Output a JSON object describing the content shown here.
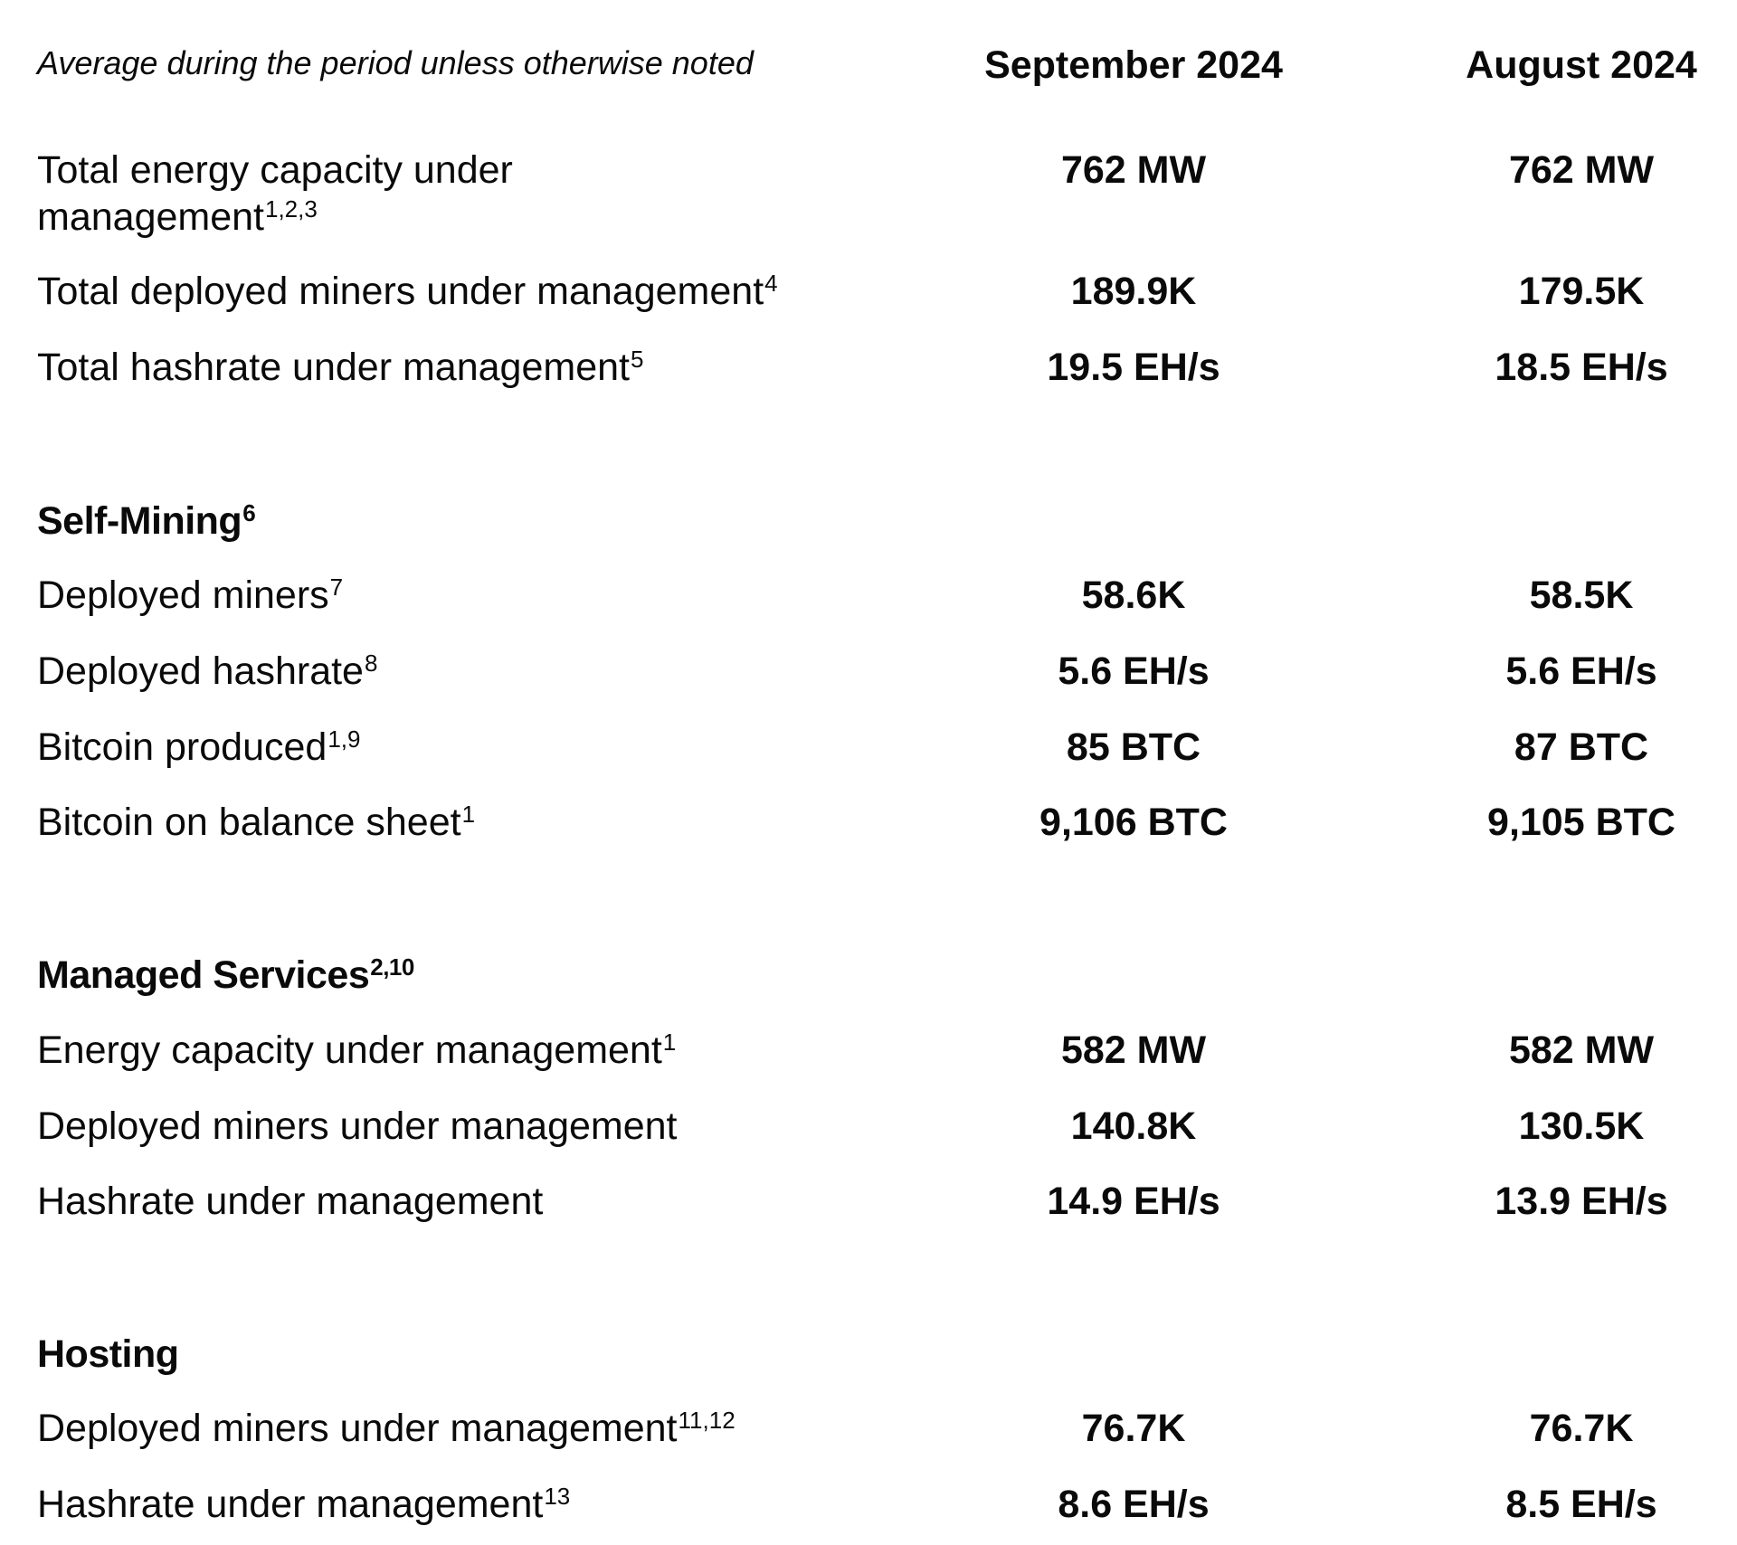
{
  "header": {
    "caption": "Average during the period unless otherwise noted",
    "col1": "September 2024",
    "col2": "August 2024"
  },
  "summary": [
    {
      "label": "Total energy capacity under management",
      "sup": "1,2,3",
      "sep": "762 MW",
      "aug": "762 MW"
    },
    {
      "label": "Total deployed miners under management",
      "sup": "4",
      "sep": "189.9K",
      "aug": "179.5K"
    },
    {
      "label": "Total hashrate under management",
      "sup": "5",
      "sep": "19.5 EH/s",
      "aug": "18.5 EH/s"
    }
  ],
  "self_mining": {
    "title": "Self-Mining",
    "sup": "6",
    "rows": [
      {
        "label": "Deployed miners",
        "sup": "7",
        "sep": "58.6K",
        "aug": "58.5K"
      },
      {
        "label": "Deployed hashrate",
        "sup": "8",
        "sep": "5.6 EH/s",
        "aug": "5.6 EH/s"
      },
      {
        "label": "Bitcoin produced",
        "sup": "1,9",
        "sep": "85 BTC",
        "aug": "87 BTC"
      },
      {
        "label": "Bitcoin on balance sheet",
        "sup": "1",
        "sep": "9,106 BTC",
        "aug": "9,105 BTC"
      }
    ]
  },
  "managed_services": {
    "title": "Managed Services",
    "sup": "2,10",
    "rows": [
      {
        "label": "Energy capacity under management",
        "sup": "1",
        "sep": "582 MW",
        "aug": "582 MW"
      },
      {
        "label": "Deployed miners under management",
        "sup": "",
        "sep": "140.8K",
        "aug": "130.5K"
      },
      {
        "label": "Hashrate under management",
        "sup": "",
        "sep": "14.9 EH/s",
        "aug": "13.9 EH/s"
      }
    ]
  },
  "hosting": {
    "title": "Hosting",
    "rows": [
      {
        "label": "Deployed miners under management",
        "sup": "11,12",
        "sep": "76.7K",
        "aug": "76.7K"
      },
      {
        "label": "Hashrate under management",
        "sup": "13",
        "sep": "8.6 EH/s",
        "aug": "8.5 EH/s"
      }
    ]
  }
}
